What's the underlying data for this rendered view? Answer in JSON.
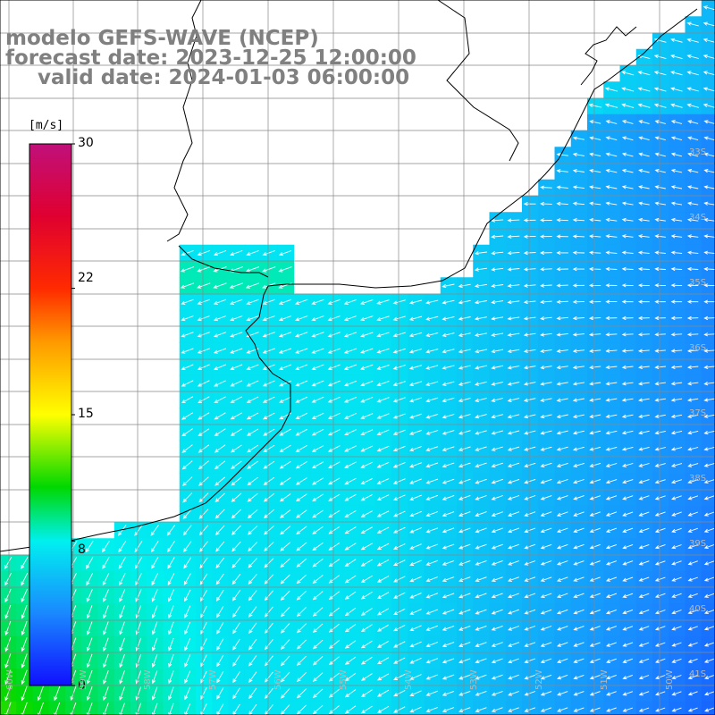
{
  "title": {
    "line1": "modelo GEFS-WAVE (NCEP)",
    "line2": "forecast date: 2023-12-25 12:00:00",
    "line3": "valid date: 2024-01-03 06:00:00"
  },
  "colorbar": {
    "unit": "[m/s]",
    "ticks": [
      {
        "label": "30",
        "value": 30
      },
      {
        "label": "22",
        "value": 22
      },
      {
        "label": "15",
        "value": 15
      },
      {
        "label": "8",
        "value": 8
      },
      {
        "label": "0",
        "value": 0
      }
    ],
    "min": 0,
    "max": 30,
    "stops": [
      {
        "value": 0,
        "color": "#1010ff"
      },
      {
        "value": 4,
        "color": "#1a88ff"
      },
      {
        "value": 8,
        "color": "#00f0f0"
      },
      {
        "value": 11,
        "color": "#00d800"
      },
      {
        "value": 15,
        "color": "#ffff00"
      },
      {
        "value": 19,
        "color": "#ff9a00"
      },
      {
        "value": 22,
        "color": "#ff2a00"
      },
      {
        "value": 26,
        "color": "#e00030"
      },
      {
        "value": 30,
        "color": "#c0107a"
      }
    ]
  },
  "map": {
    "region": "South Atlantic off Uruguay and Buenos Aires",
    "lon_range": [
      -60,
      -49
    ],
    "lat_range": [
      -41,
      -30.5
    ],
    "land_color": "#ffffff",
    "grid_color": "#888888",
    "coast_color": "#000000",
    "arrow_color": "#ffffff",
    "lat_labels": [
      "33S",
      "34S",
      "35S",
      "36S",
      "37S",
      "38S",
      "39S",
      "40S",
      "41S"
    ],
    "lon_labels": [
      "60W",
      "59W",
      "58W",
      "57W",
      "56W",
      "55W",
      "54W",
      "53W",
      "52W",
      "51W",
      "50W"
    ],
    "field_description": "wind speed 6-12 m/s; wind from the northeast in the north and east, turning to northerly near the southwest coast"
  }
}
